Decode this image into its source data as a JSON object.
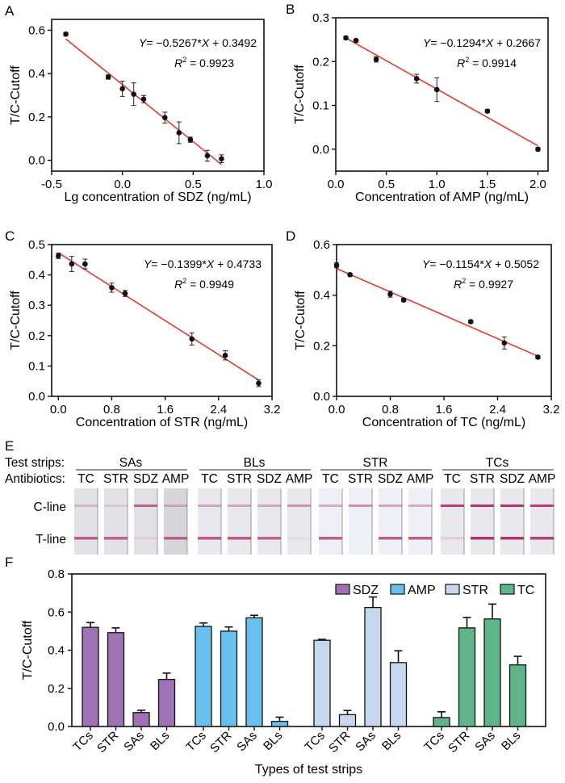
{
  "chart_data": [
    {
      "panel": "A",
      "type": "scatter",
      "xlabel": "Lg concentration of SDZ (ng/mL)",
      "ylabel": "T/C-Cutoff",
      "xlim": [
        -0.5,
        1.0
      ],
      "ylim": [
        -0.05,
        0.65
      ],
      "xticks": [
        "-0.5",
        "0.0",
        "0.5",
        "1.0"
      ],
      "xtick_values": [
        -0.5,
        0.0,
        0.5,
        1.0
      ],
      "yticks": [
        "0.0",
        "0.2",
        "0.4",
        "0.6"
      ],
      "ytick_values": [
        0.0,
        0.2,
        0.4,
        0.6
      ],
      "points": [
        {
          "x": -0.4,
          "y": 0.582,
          "err": 0.008
        },
        {
          "x": -0.1,
          "y": 0.384,
          "err": 0.01
        },
        {
          "x": 0.0,
          "y": 0.33,
          "err": 0.035
        },
        {
          "x": 0.08,
          "y": 0.305,
          "err": 0.052
        },
        {
          "x": 0.15,
          "y": 0.282,
          "err": 0.017
        },
        {
          "x": 0.3,
          "y": 0.197,
          "err": 0.025
        },
        {
          "x": 0.4,
          "y": 0.127,
          "err": 0.05
        },
        {
          "x": 0.48,
          "y": 0.095,
          "err": 0.012
        },
        {
          "x": 0.6,
          "y": 0.021,
          "err": 0.025
        },
        {
          "x": 0.7,
          "y": 0.007,
          "err": 0.018
        }
      ],
      "fit": {
        "slope": -0.5267,
        "intercept": 0.3492,
        "x_range": [
          -0.4,
          0.7
        ]
      },
      "equation": "= −0.5267*",
      "equation_tail": " + 0.3492",
      "r2_value": " = 0.9923"
    },
    {
      "panel": "B",
      "type": "scatter",
      "xlabel": "Concentration of AMP (ng/mL)",
      "ylabel": "T/C-Cutoff",
      "xlim": [
        0.0,
        2.1
      ],
      "ylim": [
        -0.05,
        0.3
      ],
      "xticks": [
        "0.0",
        "0.5",
        "1.0",
        "1.5",
        "2.0"
      ],
      "xtick_values": [
        0.0,
        0.5,
        1.0,
        1.5,
        2.0
      ],
      "yticks": [
        "0.0",
        "0.1",
        "0.2",
        "0.3"
      ],
      "ytick_values": [
        0.0,
        0.1,
        0.2,
        0.3
      ],
      "points": [
        {
          "x": 0.1,
          "y": 0.254,
          "err": 0.002
        },
        {
          "x": 0.2,
          "y": 0.248,
          "err": 0.002
        },
        {
          "x": 0.4,
          "y": 0.205,
          "err": 0.006
        },
        {
          "x": 0.8,
          "y": 0.161,
          "err": 0.01
        },
        {
          "x": 1.0,
          "y": 0.136,
          "err": 0.027
        },
        {
          "x": 1.5,
          "y": 0.087,
          "err": 0.002
        },
        {
          "x": 2.0,
          "y": 0.0,
          "err": 0.002
        }
      ],
      "fit": {
        "slope": -0.1294,
        "intercept": 0.2667,
        "x_range": [
          0.1,
          2.0
        ]
      },
      "equation": "= −0.1294*",
      "equation_tail": " + 0.2667",
      "r2_value": " = 0.9914"
    },
    {
      "panel": "C",
      "type": "scatter",
      "xlabel": "Concentration of STR (ng/mL)",
      "ylabel": "T/C-Cutoff",
      "xlim": [
        -0.1,
        3.2
      ],
      "ylim": [
        0.0,
        0.5
      ],
      "xticks": [
        "0.0",
        "0.8",
        "1.6",
        "2.4",
        "3.2"
      ],
      "xtick_values": [
        0.0,
        0.8,
        1.6,
        2.4,
        3.2
      ],
      "yticks": [
        "0.0",
        "0.1",
        "0.2",
        "0.3",
        "0.4",
        "0.5"
      ],
      "ytick_values": [
        0.0,
        0.1,
        0.2,
        0.3,
        0.4,
        0.5
      ],
      "points": [
        {
          "x": 0.0,
          "y": 0.463,
          "err": 0.009
        },
        {
          "x": 0.2,
          "y": 0.436,
          "err": 0.025
        },
        {
          "x": 0.4,
          "y": 0.436,
          "err": 0.016
        },
        {
          "x": 0.8,
          "y": 0.358,
          "err": 0.015
        },
        {
          "x": 1.0,
          "y": 0.339,
          "err": 0.01
        },
        {
          "x": 2.0,
          "y": 0.189,
          "err": 0.02
        },
        {
          "x": 2.5,
          "y": 0.135,
          "err": 0.015
        },
        {
          "x": 3.0,
          "y": 0.043,
          "err": 0.011
        }
      ],
      "fit": {
        "slope": -0.1399,
        "intercept": 0.4733,
        "x_range": [
          0.0,
          3.0
        ]
      },
      "equation": "= −0.1399*",
      "equation_tail": " + 0.4733",
      "r2_value": " = 0.9949"
    },
    {
      "panel": "D",
      "type": "scatter",
      "xlabel": "Concentration of TC (ng/mL)",
      "ylabel": "T/C-Cutoff",
      "xlim": [
        0.0,
        3.2
      ],
      "ylim": [
        0.0,
        0.6
      ],
      "xticks": [
        "0.0",
        "0.8",
        "1.6",
        "2.4",
        "3.2"
      ],
      "xtick_values": [
        0.0,
        0.8,
        1.6,
        2.4,
        3.2
      ],
      "yticks": [
        "0.0",
        "0.2",
        "0.4",
        "0.6"
      ],
      "ytick_values": [
        0.0,
        0.2,
        0.4,
        0.6
      ],
      "points": [
        {
          "x": 0.0,
          "y": 0.518,
          "err": 0.01
        },
        {
          "x": 0.2,
          "y": 0.481,
          "err": 0.003
        },
        {
          "x": 0.8,
          "y": 0.404,
          "err": 0.012
        },
        {
          "x": 1.0,
          "y": 0.381,
          "err": 0.004
        },
        {
          "x": 2.0,
          "y": 0.295,
          "err": 0.006
        },
        {
          "x": 2.5,
          "y": 0.211,
          "err": 0.024
        },
        {
          "x": 3.0,
          "y": 0.155,
          "err": 0.003
        }
      ],
      "fit": {
        "slope": -0.1154,
        "intercept": 0.5052,
        "x_range": [
          0.0,
          3.0
        ]
      },
      "equation": "= −0.1154*",
      "equation_tail": " + 0.5052",
      "r2_value": " = 0.9927"
    },
    {
      "panel": "F",
      "type": "bar",
      "xlabel": "Types of test strips",
      "ylabel": "T/C-Cutoff",
      "ylim": [
        0.0,
        0.8
      ],
      "yticks": [
        "0.0",
        "0.2",
        "0.4",
        "0.6",
        "0.8"
      ],
      "ytick_values": [
        0.0,
        0.2,
        0.4,
        0.6,
        0.8
      ],
      "categories": [
        "TCs",
        "STR",
        "SAs",
        "BLs"
      ],
      "legend_position": "top-right",
      "series": [
        {
          "name": "SDZ",
          "color": "#9e72b4",
          "values": [
            0.52,
            0.492,
            0.073,
            0.247
          ],
          "errors": [
            0.025,
            0.025,
            0.012,
            0.033
          ]
        },
        {
          "name": "AMP",
          "color": "#68c1ec",
          "values": [
            0.525,
            0.5,
            0.57,
            0.027
          ],
          "errors": [
            0.018,
            0.022,
            0.013,
            0.022
          ]
        },
        {
          "name": "STR",
          "color": "#c6d7ef",
          "values": [
            0.452,
            0.062,
            0.624,
            0.335
          ],
          "errors": [
            0.005,
            0.022,
            0.055,
            0.062
          ]
        },
        {
          "name": "TC",
          "color": "#5fb48a",
          "values": [
            0.047,
            0.517,
            0.564,
            0.323
          ],
          "errors": [
            0.03,
            0.055,
            0.078,
            0.045
          ]
        }
      ]
    }
  ],
  "panel_labels": {
    "A": "A",
    "B": "B",
    "C": "C",
    "D": "D",
    "E": "E",
    "F": "F"
  },
  "equation_prefix": "Y",
  "equation_var": "X",
  "r2_prefix": "R",
  "r2_sup": "2",
  "strips": {
    "test_strips_label": "Test strips:",
    "antibiotics_label": "Antibiotics:",
    "c_line_label": "C-line",
    "t_line_label": "T-line",
    "groups": [
      {
        "name": "SAs",
        "antibiotics": [
          "TC",
          "STR",
          "SDZ",
          "AMP"
        ],
        "c_line": [
          0.25,
          0.15,
          0.7,
          0.3
        ],
        "t_line": [
          0.75,
          0.7,
          0.1,
          0.7
        ]
      },
      {
        "name": "BLs",
        "antibiotics": [
          "TC",
          "STR",
          "SDZ",
          "AMP"
        ],
        "c_line": [
          0.35,
          0.35,
          0.35,
          0.45
        ],
        "t_line": [
          0.75,
          0.75,
          0.7,
          0.05
        ]
      },
      {
        "name": "STR",
        "antibiotics": [
          "TC",
          "STR",
          "SDZ",
          "AMP"
        ],
        "c_line": [
          0.35,
          0.5,
          0.4,
          0.35
        ],
        "t_line": [
          0.75,
          0.0,
          0.75,
          0.75
        ]
      },
      {
        "name": "TCs",
        "antibiotics": [
          "TC",
          "STR",
          "SDZ",
          "AMP"
        ],
        "c_line": [
          0.9,
          0.95,
          0.95,
          0.9
        ],
        "t_line": [
          0.12,
          0.95,
          0.95,
          0.9
        ]
      }
    ]
  }
}
